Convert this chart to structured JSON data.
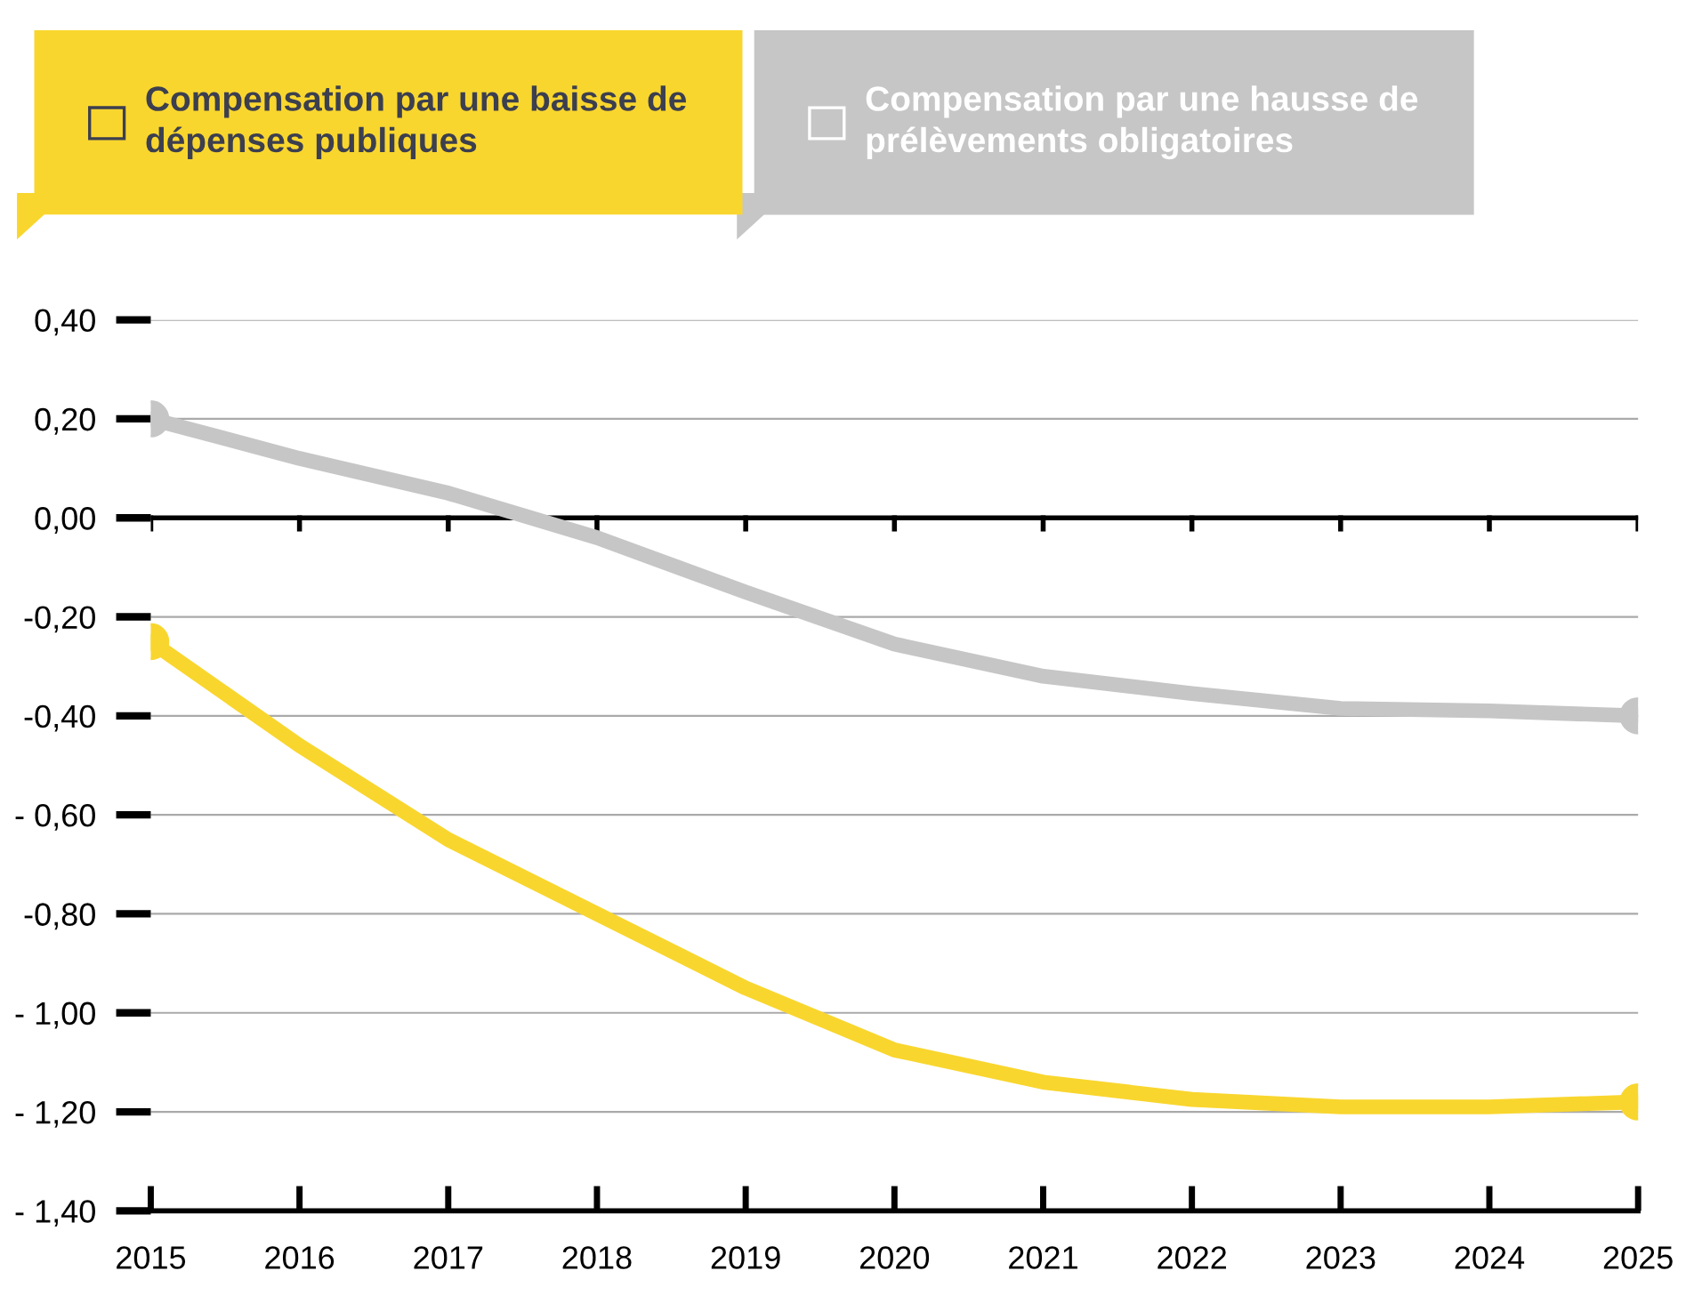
{
  "chart_data": {
    "type": "line",
    "x": [
      2015,
      2016,
      2017,
      2018,
      2019,
      2020,
      2021,
      2022,
      2023,
      2024,
      2025
    ],
    "series": [
      {
        "name": "Compensation par une baisse de dépenses publiques",
        "color": "#f9d62e",
        "values": [
          -0.25,
          -0.46,
          -0.65,
          -0.8,
          -0.95,
          -1.075,
          -1.14,
          -1.175,
          -1.19,
          -1.19,
          -1.18
        ]
      },
      {
        "name": "Compensation par une hausse de prélèvements obligatoires",
        "color": "#c6c6c6",
        "values": [
          0.2,
          0.12,
          0.05,
          -0.04,
          -0.15,
          -0.255,
          -0.32,
          -0.355,
          -0.385,
          -0.39,
          -0.4
        ]
      }
    ],
    "xlim": [
      2015,
      2025
    ],
    "xticks": [
      2015,
      2016,
      2017,
      2018,
      2019,
      2020,
      2021,
      2022,
      2023,
      2024,
      2025
    ],
    "ylim": [
      -1.4,
      0.4
    ],
    "yticks": [
      {
        "value": 0.4,
        "label": "0,40"
      },
      {
        "value": 0.2,
        "label": "0,20"
      },
      {
        "value": 0,
        "label": "0,00"
      },
      {
        "value": -0.2,
        "label": "-0,20"
      },
      {
        "value": -0.4,
        "label": "-0,40"
      },
      {
        "value": -0.6,
        "label": "- 0,60"
      },
      {
        "value": -0.8,
        "label": "-0,80"
      },
      {
        "value": -1.0,
        "label": "- 1,00"
      },
      {
        "value": -1.2,
        "label": "- 1,20"
      },
      {
        "value": -1.4,
        "label": "- 1,40"
      }
    ],
    "ref_lines": [
      {
        "axis": "y",
        "value": 0,
        "color": "#000000"
      }
    ],
    "grid": "y",
    "legend": "top",
    "line_style": "solid"
  }
}
